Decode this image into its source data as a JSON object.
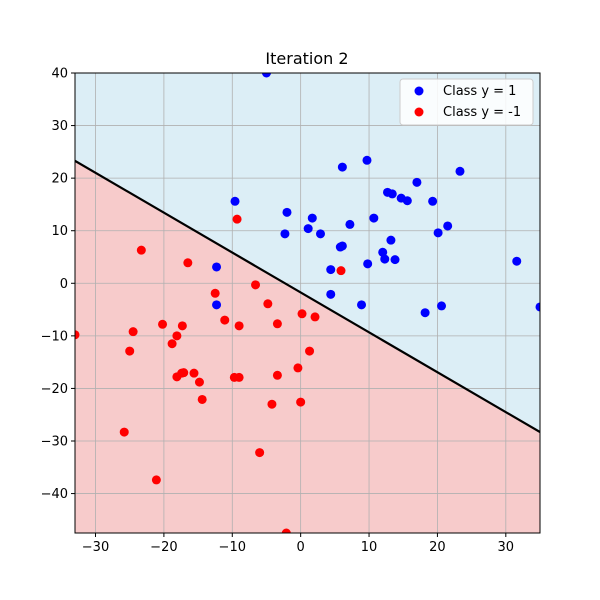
{
  "chart_data": {
    "type": "scatter",
    "title": "Iteration 2",
    "xlabel": "",
    "ylabel": "",
    "xlim": [
      -33,
      35
    ],
    "ylim": [
      -47.5,
      40
    ],
    "xticks": [
      -30,
      -20,
      -10,
      0,
      10,
      20,
      30
    ],
    "yticks": [
      -40,
      -30,
      -20,
      -10,
      0,
      10,
      20,
      30,
      40
    ],
    "grid": true,
    "legend_position": "top-right",
    "colors": {
      "positive_region": "#dceef6",
      "negative_region": "#f7cbcb",
      "boundary": "#000000",
      "grid": "#b0b0b0"
    },
    "decision_boundary": {
      "x": [
        -33,
        35
      ],
      "y": [
        23.3,
        -28.3
      ]
    },
    "series": [
      {
        "name": "Class y = 1",
        "color": "#0000ff",
        "points": [
          [
            -5,
            40
          ],
          [
            9.7,
            23.4
          ],
          [
            6.1,
            22.1
          ],
          [
            23.3,
            21.3
          ],
          [
            17,
            19.2
          ],
          [
            12.7,
            17.3
          ],
          [
            13.4,
            17
          ],
          [
            14.7,
            16.2
          ],
          [
            15.6,
            15.7
          ],
          [
            19.3,
            15.6
          ],
          [
            -9.6,
            15.6
          ],
          [
            -2,
            13.5
          ],
          [
            1.7,
            12.4
          ],
          [
            10.7,
            12.4
          ],
          [
            7.2,
            11.2
          ],
          [
            21.5,
            10.9
          ],
          [
            1.1,
            10.4
          ],
          [
            2.9,
            9.4
          ],
          [
            -2.3,
            9.4
          ],
          [
            20.1,
            9.6
          ],
          [
            13.2,
            8.2
          ],
          [
            5.8,
            6.9
          ],
          [
            6.1,
            7.1
          ],
          [
            12,
            5.9
          ],
          [
            12.3,
            4.6
          ],
          [
            13.8,
            4.5
          ],
          [
            9.8,
            3.7
          ],
          [
            31.6,
            4.2
          ],
          [
            -12.3,
            3.1
          ],
          [
            4.4,
            2.6
          ],
          [
            4.4,
            -2.1
          ],
          [
            8.9,
            -4.1
          ],
          [
            20.6,
            -4.3
          ],
          [
            35,
            -4.5
          ],
          [
            18.2,
            -5.6
          ],
          [
            -12.3,
            -4.1
          ]
        ]
      },
      {
        "name": "Class y = -1",
        "color": "#ff0000",
        "points": [
          [
            -9.3,
            12.2
          ],
          [
            -23.3,
            6.3
          ],
          [
            -16.5,
            3.9
          ],
          [
            -6.6,
            -0.3
          ],
          [
            5.9,
            2.4
          ],
          [
            -12.5,
            -1.9
          ],
          [
            -4.8,
            -3.9
          ],
          [
            -11.1,
            -7
          ],
          [
            -20.2,
            -7.8
          ],
          [
            -3.4,
            -7.7
          ],
          [
            -17.3,
            -8.1
          ],
          [
            -9,
            -8.1
          ],
          [
            0.2,
            -5.8
          ],
          [
            2.1,
            -6.4
          ],
          [
            -24.5,
            -9.2
          ],
          [
            -33,
            -9.8
          ],
          [
            -18.1,
            -10
          ],
          [
            -18.8,
            -11.5
          ],
          [
            1.3,
            -12.9
          ],
          [
            -25,
            -12.9
          ],
          [
            -0.4,
            -16.1
          ],
          [
            -17.4,
            -17.1
          ],
          [
            -17.1,
            -17
          ],
          [
            -15.6,
            -17.1
          ],
          [
            -18.1,
            -17.8
          ],
          [
            -3.4,
            -17.5
          ],
          [
            -9.7,
            -17.9
          ],
          [
            -9,
            -17.9
          ],
          [
            -14.8,
            -18.8
          ],
          [
            -14.4,
            -22.1
          ],
          [
            -4.2,
            -23
          ],
          [
            0,
            -22.6
          ],
          [
            -25.8,
            -28.3
          ],
          [
            -6,
            -32.2
          ],
          [
            -21.1,
            -37.4
          ],
          [
            -2.1,
            -47.5
          ]
        ]
      }
    ]
  }
}
